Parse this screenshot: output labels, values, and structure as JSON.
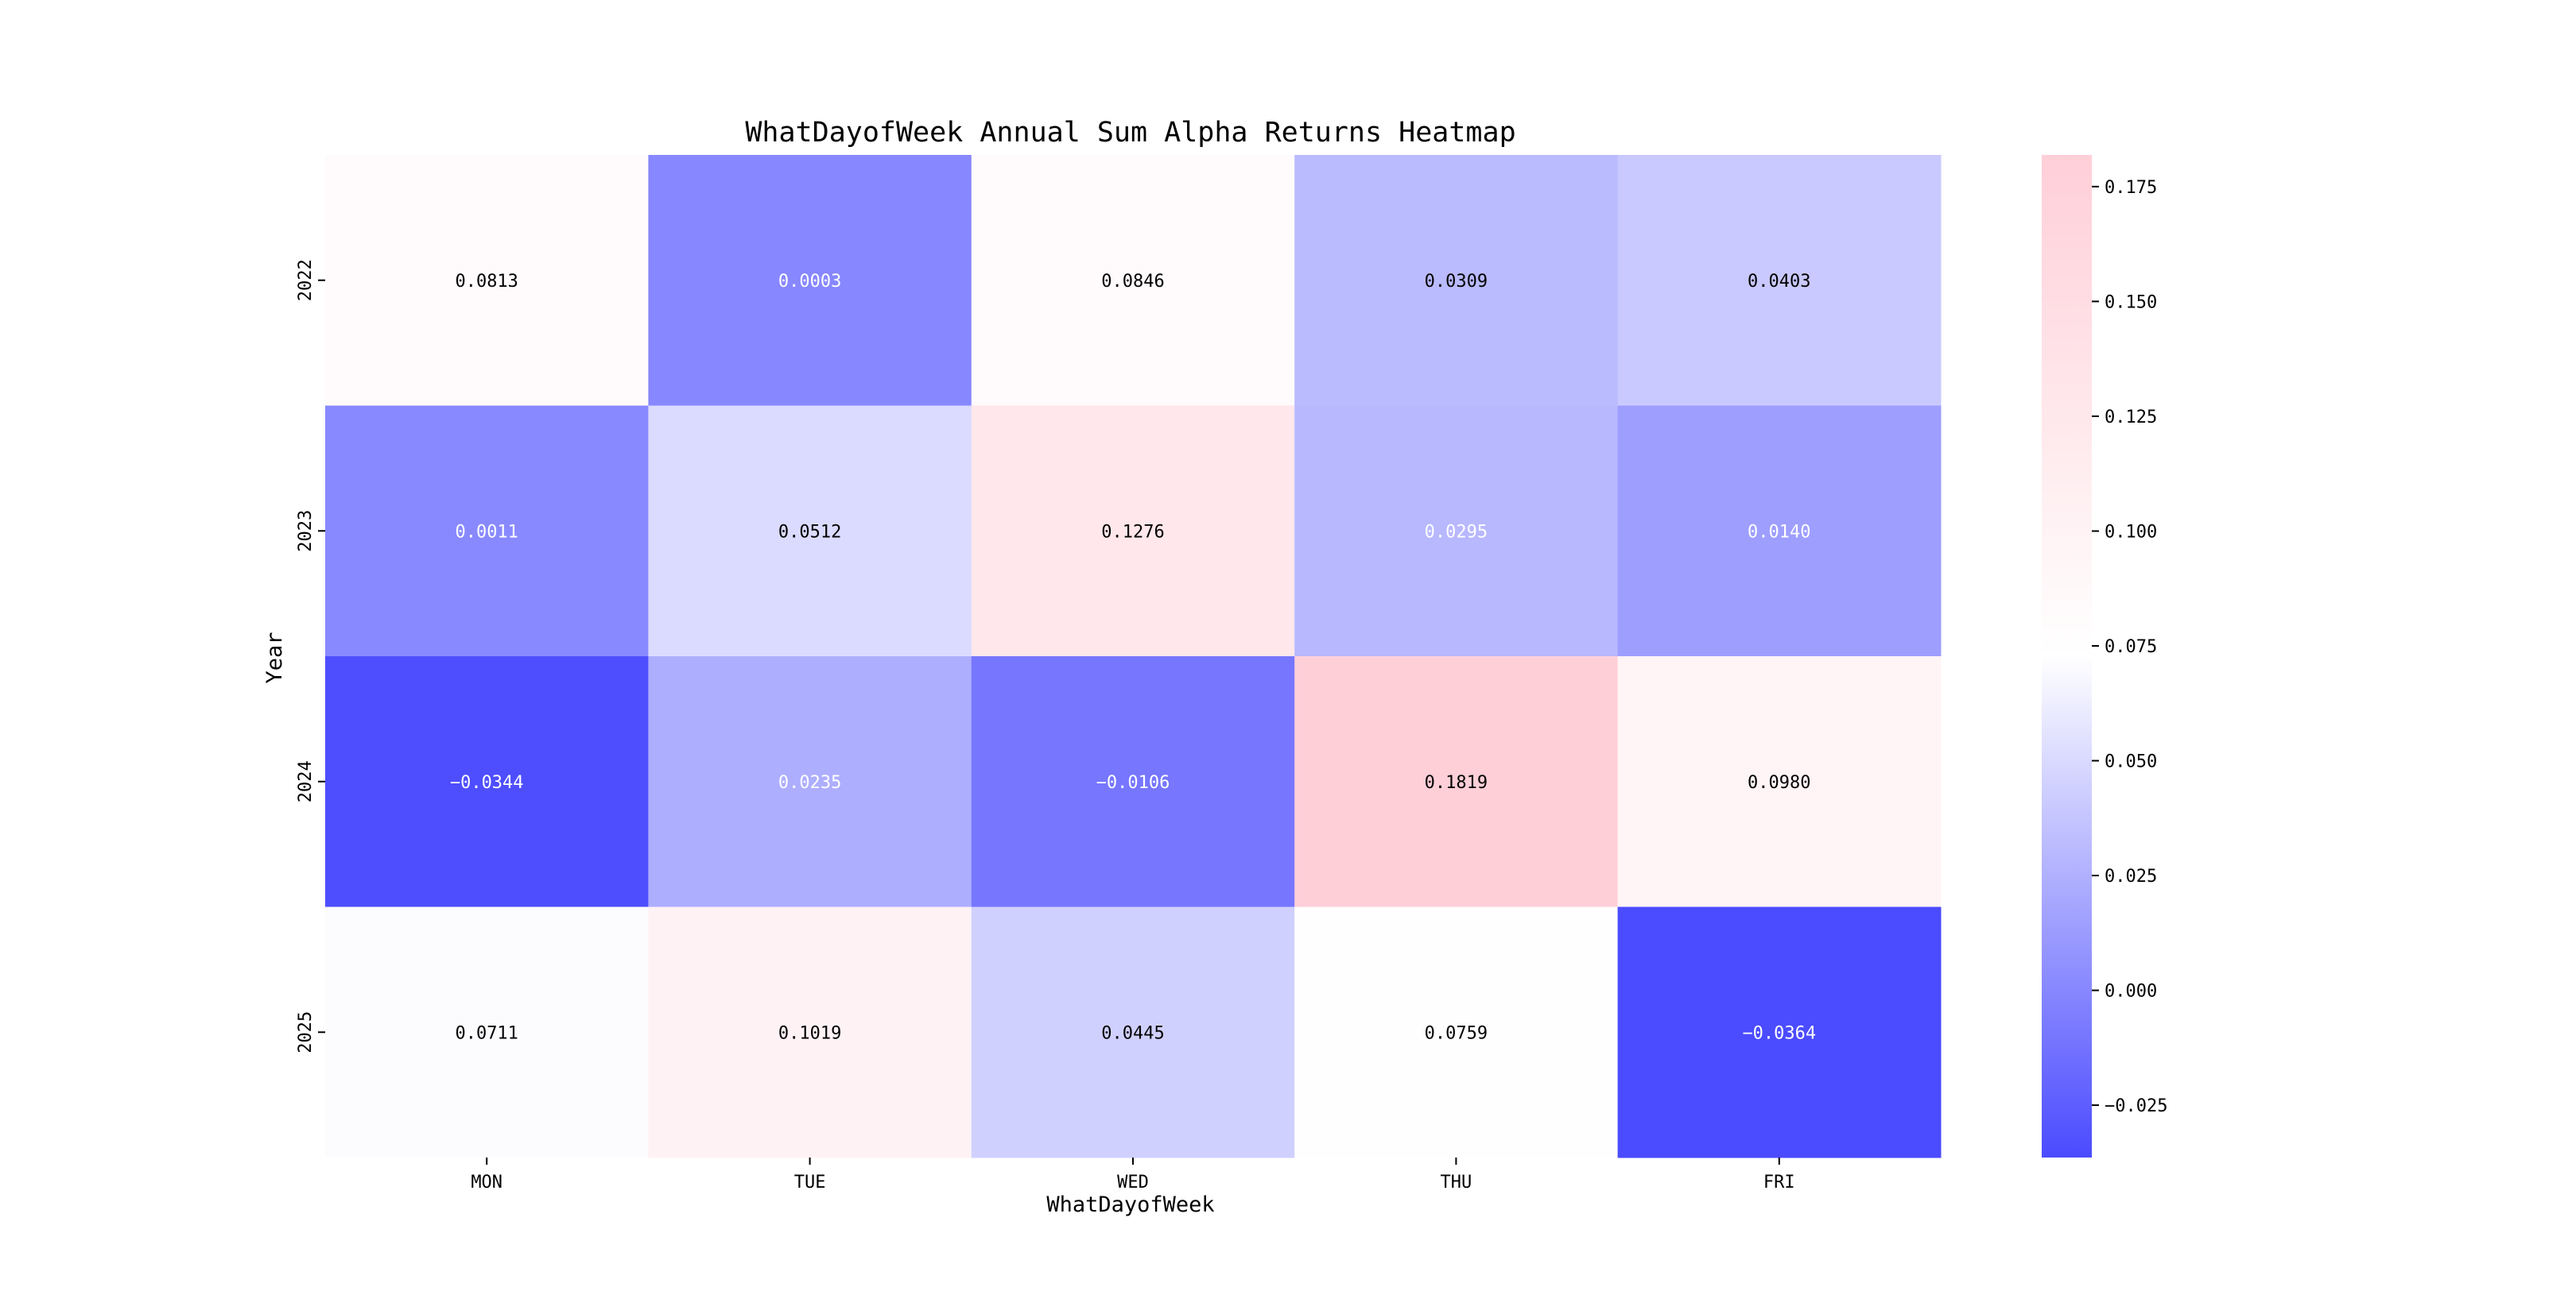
{
  "chart_data": {
    "type": "heatmap",
    "title": "WhatDayofWeek Annual Sum Alpha Returns Heatmap",
    "xlabel": "WhatDayofWeek",
    "ylabel": "Year",
    "x_categories": [
      "MON",
      "TUE",
      "WED",
      "THU",
      "FRI"
    ],
    "y_categories": [
      "2022",
      "2023",
      "2024",
      "2025"
    ],
    "values": [
      [
        0.0813,
        0.0003,
        0.0846,
        0.0309,
        0.0403
      ],
      [
        0.0011,
        0.0512,
        0.1276,
        0.0295,
        0.014
      ],
      [
        -0.0344,
        0.0235,
        -0.0106,
        0.1819,
        0.098
      ],
      [
        0.0711,
        0.1019,
        0.0445,
        0.0759,
        -0.0364
      ]
    ],
    "cell_labels": [
      [
        "0.0813",
        "0.0003",
        "0.0846",
        "0.0309",
        "0.0403"
      ],
      [
        "0.0011",
        "0.0512",
        "0.1276",
        "0.0295",
        "0.0140"
      ],
      [
        "−0.0344",
        "0.0235",
        "−0.0106",
        "0.1819",
        "0.0980"
      ],
      [
        "0.0711",
        "0.1019",
        "0.0445",
        "0.0759",
        "−0.0364"
      ]
    ],
    "color_range": [
      -0.0364,
      0.1819
    ],
    "colormap": {
      "low": "#4b4bff",
      "mid": "#ffffff",
      "high": "#ffcfd8",
      "mid_value": 0.0728
    },
    "colorbar": {
      "ticks": [
        -0.025,
        0.0,
        0.025,
        0.05,
        0.075,
        0.1,
        0.125,
        0.15,
        0.175
      ],
      "tick_labels": [
        "−0.025",
        "0.000",
        "0.025",
        "0.050",
        "0.075",
        "0.100",
        "0.125",
        "0.150",
        "0.175"
      ]
    }
  }
}
